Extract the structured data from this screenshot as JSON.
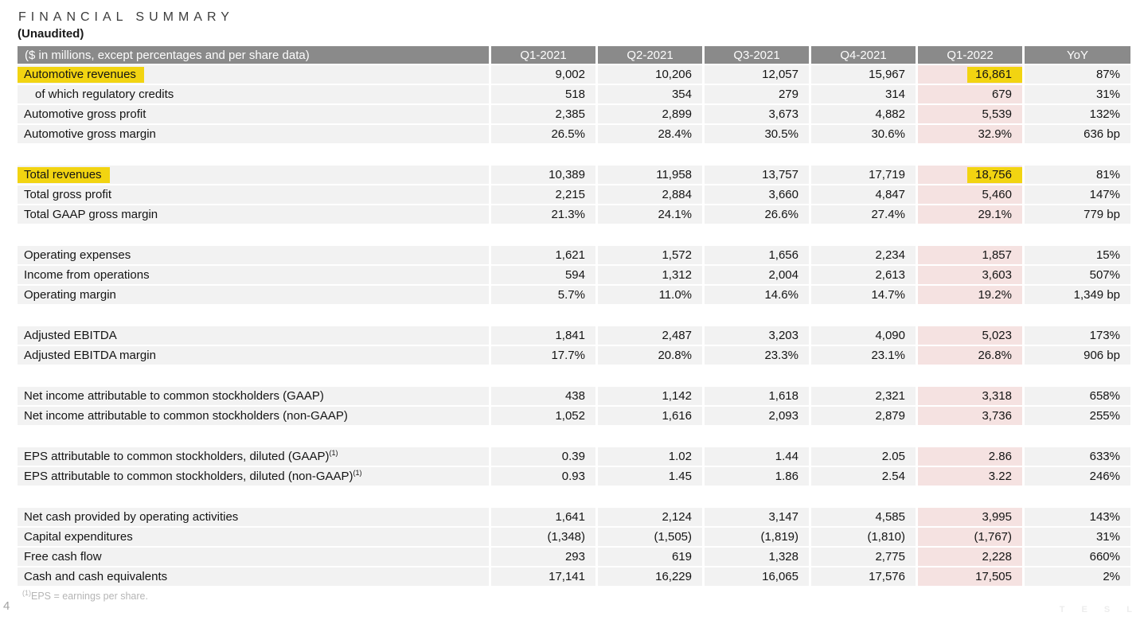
{
  "page": {
    "title": "FINANCIAL SUMMARY",
    "subtitle": "(Unaudited)",
    "page_number": "4",
    "watermark": "T E S L",
    "footnote": {
      "sup": "(1)",
      "text": "EPS = earnings per share."
    }
  },
  "colors": {
    "header_bg": "#8a8a8a",
    "row_bg": "#f2f2f2",
    "q1_2022_column_bg": "#f5e2e1",
    "highlight_yellow": "#f2d411"
  },
  "table": {
    "header": [
      "($ in millions, except percentages and per share data)",
      "Q1-2021",
      "Q2-2021",
      "Q3-2021",
      "Q4-2021",
      "Q1-2022",
      "YoY"
    ],
    "rows": [
      {
        "label": "Automotive revenues",
        "label_highlight": true,
        "values": [
          "9,002",
          "10,206",
          "12,057",
          "15,967",
          "16,861",
          "87%"
        ],
        "value_highlight": true
      },
      {
        "label": "of which regulatory credits",
        "indent": true,
        "values": [
          "518",
          "354",
          "279",
          "314",
          "679",
          "31%"
        ]
      },
      {
        "label": "Automotive gross profit",
        "values": [
          "2,385",
          "2,899",
          "3,673",
          "4,882",
          "5,539",
          "132%"
        ]
      },
      {
        "label": "Automotive gross margin",
        "values": [
          "26.5%",
          "28.4%",
          "30.5%",
          "30.6%",
          "32.9%",
          "636 bp"
        ]
      },
      {
        "spacer": true
      },
      {
        "label": "Total revenues",
        "label_highlight": true,
        "values": [
          "10,389",
          "11,958",
          "13,757",
          "17,719",
          "18,756",
          "81%"
        ],
        "value_highlight": true
      },
      {
        "label": "Total gross profit",
        "values": [
          "2,215",
          "2,884",
          "3,660",
          "4,847",
          "5,460",
          "147%"
        ]
      },
      {
        "label": "Total GAAP gross margin",
        "values": [
          "21.3%",
          "24.1%",
          "26.6%",
          "27.4%",
          "29.1%",
          "779 bp"
        ]
      },
      {
        "spacer": true
      },
      {
        "label": "Operating expenses",
        "values": [
          "1,621",
          "1,572",
          "1,656",
          "2,234",
          "1,857",
          "15%"
        ]
      },
      {
        "label": "Income from operations",
        "values": [
          "594",
          "1,312",
          "2,004",
          "2,613",
          "3,603",
          "507%"
        ]
      },
      {
        "label": "Operating margin",
        "values": [
          "5.7%",
          "11.0%",
          "14.6%",
          "14.7%",
          "19.2%",
          "1,349 bp"
        ]
      },
      {
        "spacer": true
      },
      {
        "label": "Adjusted EBITDA",
        "values": [
          "1,841",
          "2,487",
          "3,203",
          "4,090",
          "5,023",
          "173%"
        ]
      },
      {
        "label": "Adjusted EBITDA margin",
        "values": [
          "17.7%",
          "20.8%",
          "23.3%",
          "23.1%",
          "26.8%",
          "906 bp"
        ]
      },
      {
        "spacer": true
      },
      {
        "label": "Net income attributable to common stockholders (GAAP)",
        "values": [
          "438",
          "1,142",
          "1,618",
          "2,321",
          "3,318",
          "658%"
        ]
      },
      {
        "label": "Net income attributable to common stockholders (non-GAAP)",
        "values": [
          "1,052",
          "1,616",
          "2,093",
          "2,879",
          "3,736",
          "255%"
        ]
      },
      {
        "spacer": true
      },
      {
        "label": "EPS attributable to common stockholders, diluted (GAAP)",
        "sup": "(1)",
        "values": [
          "0.39",
          "1.02",
          "1.44",
          "2.05",
          "2.86",
          "633%"
        ]
      },
      {
        "label": "EPS attributable to common stockholders, diluted (non-GAAP)",
        "sup": "(1)",
        "values": [
          "0.93",
          "1.45",
          "1.86",
          "2.54",
          "3.22",
          "246%"
        ]
      },
      {
        "spacer": true
      },
      {
        "label": "Net cash provided by operating activities",
        "values": [
          "1,641",
          "2,124",
          "3,147",
          "4,585",
          "3,995",
          "143%"
        ]
      },
      {
        "label": "Capital expenditures",
        "values": [
          "(1,348)",
          "(1,505)",
          "(1,819)",
          "(1,810)",
          "(1,767)",
          "31%"
        ]
      },
      {
        "label": "Free cash flow",
        "values": [
          "293",
          "619",
          "1,328",
          "2,775",
          "2,228",
          "660%"
        ]
      },
      {
        "label": "Cash and cash equivalents",
        "values": [
          "17,141",
          "16,229",
          "16,065",
          "17,576",
          "17,505",
          "2%"
        ]
      }
    ]
  }
}
